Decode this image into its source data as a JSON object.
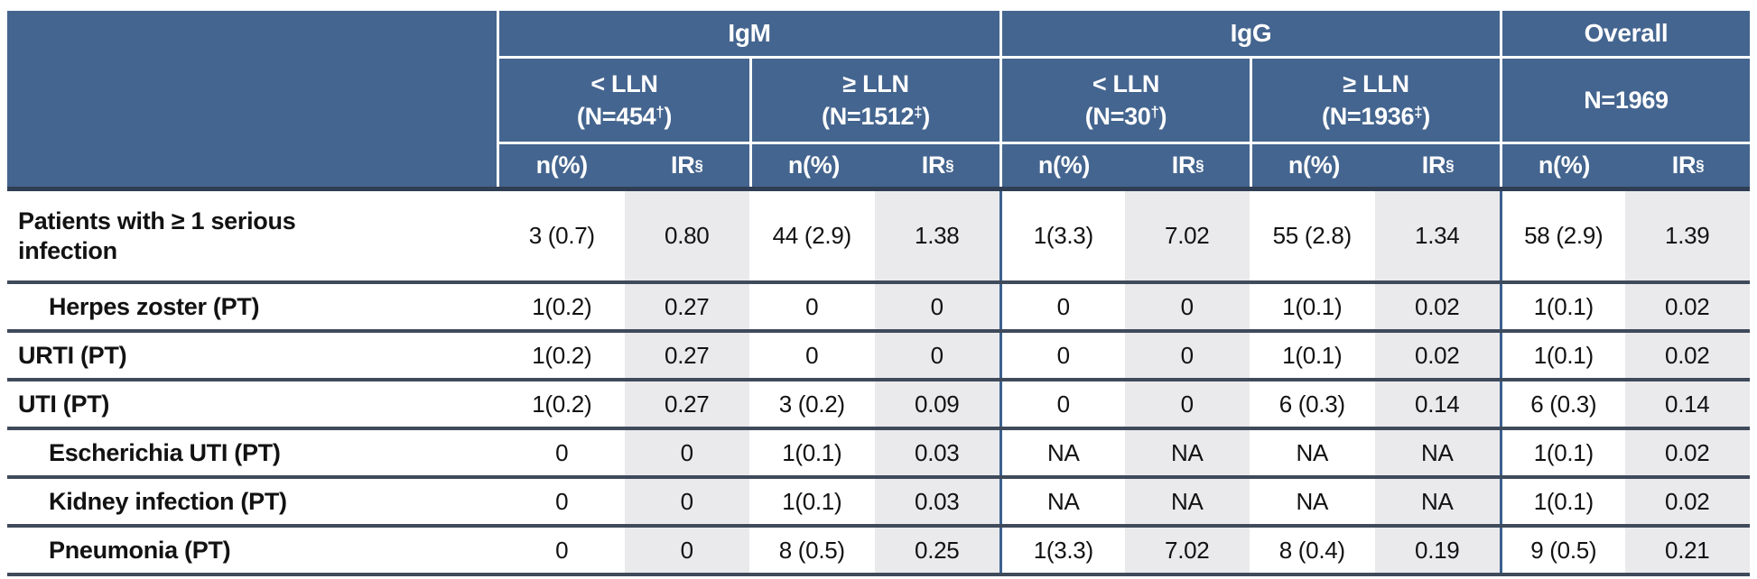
{
  "header": {
    "igm_title": "IgM",
    "igg_title": "IgG",
    "overall_title": "Overall",
    "subcols": [
      {
        "line1": "< LLN",
        "n_pre": "(N=454",
        "n_sup": "†",
        "n_post": ")"
      },
      {
        "line1": "≥ LLN",
        "n_pre": "(N=1512",
        "n_sup": "‡",
        "n_post": ")"
      },
      {
        "line1": "< LLN",
        "n_pre": "(N=30",
        "n_sup": "†",
        "n_post": ")"
      },
      {
        "line1": "≥ LLN",
        "n_pre": "(N=1936",
        "n_sup": "‡",
        "n_post": ")"
      }
    ],
    "overall_n": "N=1969",
    "n_label": "n(%)",
    "ir_label": "IR",
    "ir_sup": "§"
  },
  "rows": [
    {
      "label_lines": [
        "Patients with ≥ 1 serious",
        "infection"
      ],
      "indent": 0,
      "values": [
        "3 (0.7)",
        "0.80",
        "44 (2.9)",
        "1.38",
        "1(3.3)",
        "7.02",
        "55 (2.8)",
        "1.34",
        "58 (2.9)",
        "1.39"
      ]
    },
    {
      "label_lines": [
        "Herpes zoster (PT)"
      ],
      "indent": 1,
      "values": [
        "1(0.2)",
        "0.27",
        "0",
        "0",
        "0",
        "0",
        "1(0.1)",
        "0.02",
        "1(0.1)",
        "0.02"
      ]
    },
    {
      "label_lines": [
        "URTI (PT)"
      ],
      "indent": 0,
      "values": [
        "1(0.2)",
        "0.27",
        "0",
        "0",
        "0",
        "0",
        "1(0.1)",
        "0.02",
        "1(0.1)",
        "0.02"
      ]
    },
    {
      "label_lines": [
        "UTI (PT)"
      ],
      "indent": 0,
      "values": [
        "1(0.2)",
        "0.27",
        "3 (0.2)",
        "0.09",
        "0",
        "0",
        "6 (0.3)",
        "0.14",
        "6 (0.3)",
        "0.14"
      ]
    },
    {
      "label_lines": [
        "Escherichia UTI (PT)"
      ],
      "indent": 1,
      "values": [
        "0",
        "0",
        "1(0.1)",
        "0.03",
        "NA",
        "NA",
        "NA",
        "NA",
        "1(0.1)",
        "0.02"
      ]
    },
    {
      "label_lines": [
        "Kidney infection (PT)"
      ],
      "indent": 1,
      "values": [
        "0",
        "0",
        "1(0.1)",
        "0.03",
        "NA",
        "NA",
        "NA",
        "NA",
        "1(0.1)",
        "0.02"
      ]
    },
    {
      "label_lines": [
        "Pneumonia (PT)"
      ],
      "indent": 1,
      "values": [
        "0",
        "0",
        "8 (0.5)",
        "0.25",
        "1(3.3)",
        "7.02",
        "8 (0.4)",
        "0.19",
        "9 (0.5)",
        "0.21"
      ]
    }
  ],
  "colors": {
    "header_blue": "#44658F",
    "divider_blue": "#3C608F",
    "ir_column_gray": "#EAEAEC",
    "separator_dark": "#3F4A5B",
    "header_border_dark": "#2F3E54",
    "text": "#121212",
    "header_text": "#FFFFFF"
  }
}
